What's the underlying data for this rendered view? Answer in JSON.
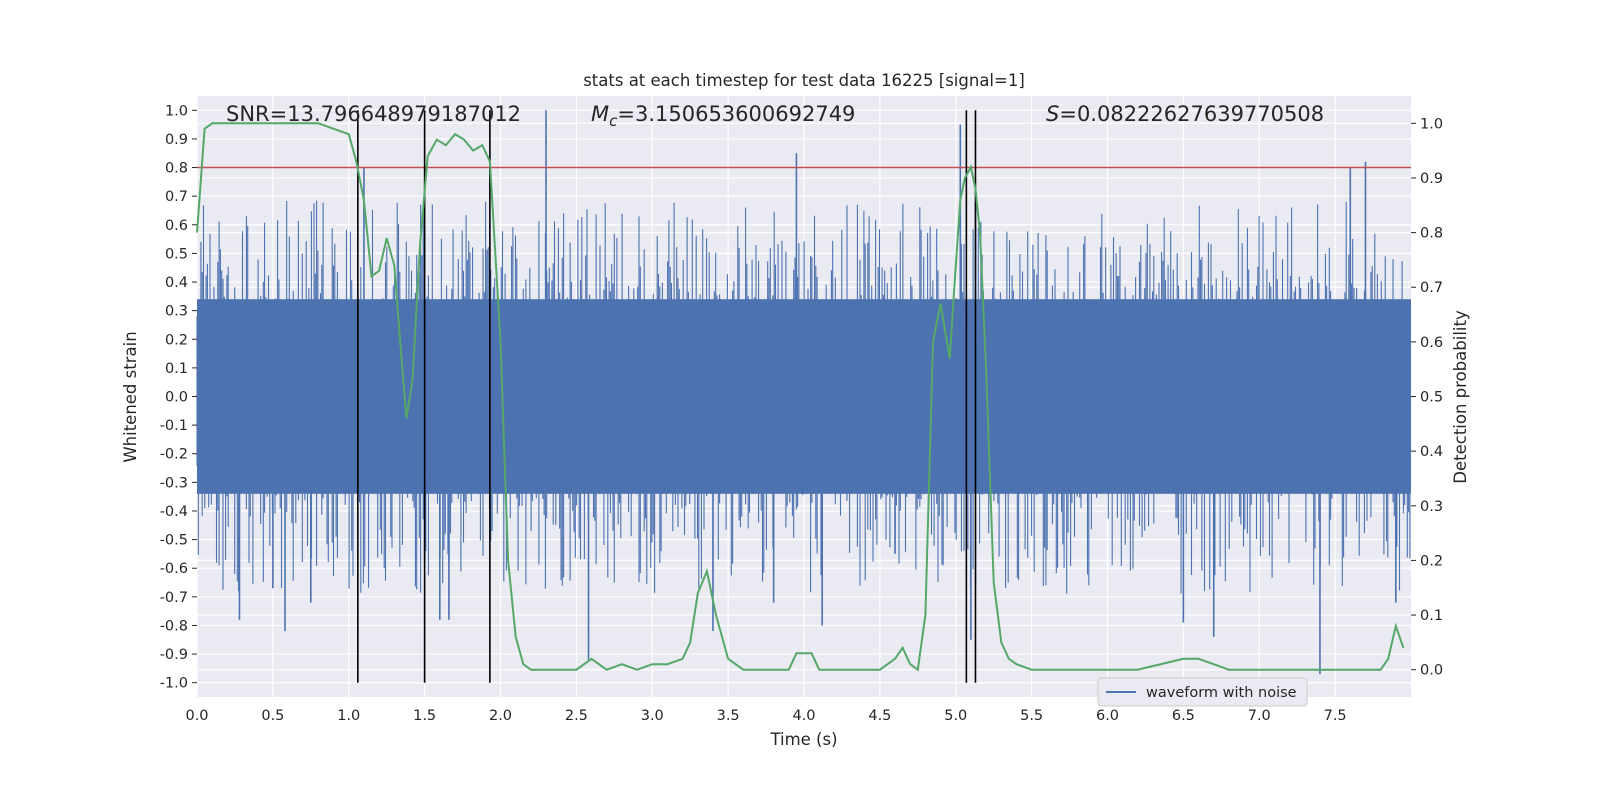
{
  "chart_data": {
    "type": "line",
    "title": "stats at each timestep for test data 16225 [signal=1]",
    "xlabel": "Time (s)",
    "ylabel_left": "Whitened strain",
    "ylabel_right": "Detection probability",
    "xlim": [
      0.0,
      8.0
    ],
    "ylim_left": [
      -1.05,
      1.05
    ],
    "ylim_right": [
      -0.05,
      1.05
    ],
    "x_ticks": [
      "0.0",
      "0.5",
      "1.0",
      "1.5",
      "2.0",
      "2.5",
      "3.0",
      "3.5",
      "4.0",
      "4.5",
      "5.0",
      "5.5",
      "6.0",
      "6.5",
      "7.0",
      "7.5"
    ],
    "y_left_ticks": [
      "1.0",
      "0.9",
      "0.8",
      "0.7",
      "0.6",
      "0.5",
      "0.4",
      "0.3",
      "0.2",
      "0.1",
      "0.0",
      "-0.1",
      "-0.2",
      "-0.3",
      "-0.4",
      "-0.5",
      "-0.6",
      "-0.7",
      "-0.8",
      "-0.9",
      "-1.0"
    ],
    "y_right_ticks": [
      "1.0",
      "0.9",
      "0.8",
      "0.7",
      "0.6",
      "0.5",
      "0.4",
      "0.3",
      "0.2",
      "0.1",
      "0.0"
    ],
    "annotations": {
      "snr": "SNR=13.796648979187012",
      "mc_symbol": "M",
      "mc_sub": "c",
      "mc_value": "=3.150653600692749",
      "s_symbol": "S",
      "s_value": "=0.08222627639770508"
    },
    "threshold": 0.8,
    "vertical_lines_x": [
      1.06,
      1.5,
      1.93,
      5.07,
      5.13
    ],
    "legend": {
      "label": "waveform with noise",
      "position": "lower right"
    },
    "series": [
      {
        "name": "waveform with noise",
        "axis": "left",
        "color": "#4c72b0",
        "core_amplitude": 0.4,
        "spikes": [
          [
            0.28,
            -0.78
          ],
          [
            0.5,
            -0.67
          ],
          [
            0.58,
            -0.82
          ],
          [
            0.75,
            -0.72
          ],
          [
            1.1,
            0.8
          ],
          [
            1.5,
            -0.58
          ],
          [
            1.6,
            -0.78
          ],
          [
            1.66,
            -0.78
          ],
          [
            2.3,
            1.0
          ],
          [
            2.58,
            -0.92
          ],
          [
            3.4,
            -0.82
          ],
          [
            3.8,
            -0.72
          ],
          [
            3.95,
            0.85
          ],
          [
            4.12,
            -0.8
          ],
          [
            4.6,
            -0.55
          ],
          [
            5.03,
            0.95
          ],
          [
            5.1,
            -0.85
          ],
          [
            5.13,
            0.68
          ],
          [
            6.5,
            -0.79
          ],
          [
            6.7,
            -0.84
          ],
          [
            7.4,
            -0.97
          ],
          [
            7.6,
            0.8
          ],
          [
            7.7,
            0.82
          ],
          [
            7.9,
            -0.72
          ]
        ]
      },
      {
        "name": "detection probability",
        "axis": "right",
        "color": "#55a868",
        "x": [
          0.0,
          0.05,
          0.1,
          0.2,
          0.3,
          0.4,
          0.5,
          0.6,
          0.7,
          0.8,
          0.9,
          1.0,
          1.05,
          1.1,
          1.15,
          1.2,
          1.25,
          1.3,
          1.35,
          1.38,
          1.42,
          1.47,
          1.52,
          1.58,
          1.64,
          1.7,
          1.76,
          1.82,
          1.88,
          1.93,
          2.0,
          2.05,
          2.1,
          2.15,
          2.2,
          2.3,
          2.5,
          2.6,
          2.7,
          2.8,
          2.9,
          3.0,
          3.1,
          3.2,
          3.25,
          3.3,
          3.36,
          3.42,
          3.5,
          3.6,
          3.8,
          3.9,
          3.95,
          4.05,
          4.1,
          4.2,
          4.3,
          4.4,
          4.5,
          4.6,
          4.65,
          4.7,
          4.75,
          4.8,
          4.85,
          4.9,
          4.96,
          5.0,
          5.03,
          5.06,
          5.1,
          5.13,
          5.16,
          5.2,
          5.25,
          5.3,
          5.35,
          5.4,
          5.5,
          5.6,
          5.8,
          6.0,
          6.2,
          6.5,
          6.6,
          6.7,
          6.8,
          7.0,
          7.2,
          7.5,
          7.8,
          7.85,
          7.9,
          7.95
        ],
        "y": [
          0.8,
          0.99,
          1.0,
          1.0,
          1.0,
          1.0,
          1.0,
          1.0,
          1.0,
          1.0,
          0.99,
          0.98,
          0.93,
          0.86,
          0.72,
          0.73,
          0.79,
          0.74,
          0.56,
          0.46,
          0.53,
          0.78,
          0.94,
          0.97,
          0.96,
          0.98,
          0.97,
          0.95,
          0.96,
          0.93,
          0.6,
          0.2,
          0.06,
          0.01,
          0.0,
          0.0,
          0.0,
          0.02,
          0.0,
          0.01,
          0.0,
          0.01,
          0.01,
          0.02,
          0.05,
          0.14,
          0.18,
          0.1,
          0.02,
          0.0,
          0.0,
          0.0,
          0.03,
          0.03,
          0.0,
          0.0,
          0.0,
          0.0,
          0.0,
          0.02,
          0.04,
          0.01,
          0.0,
          0.1,
          0.6,
          0.67,
          0.57,
          0.74,
          0.86,
          0.9,
          0.92,
          0.88,
          0.8,
          0.55,
          0.16,
          0.05,
          0.02,
          0.01,
          0.0,
          0.0,
          0.0,
          0.0,
          0.0,
          0.02,
          0.02,
          0.01,
          0.0,
          0.0,
          0.0,
          0.0,
          0.0,
          0.02,
          0.08,
          0.04
        ]
      }
    ]
  }
}
